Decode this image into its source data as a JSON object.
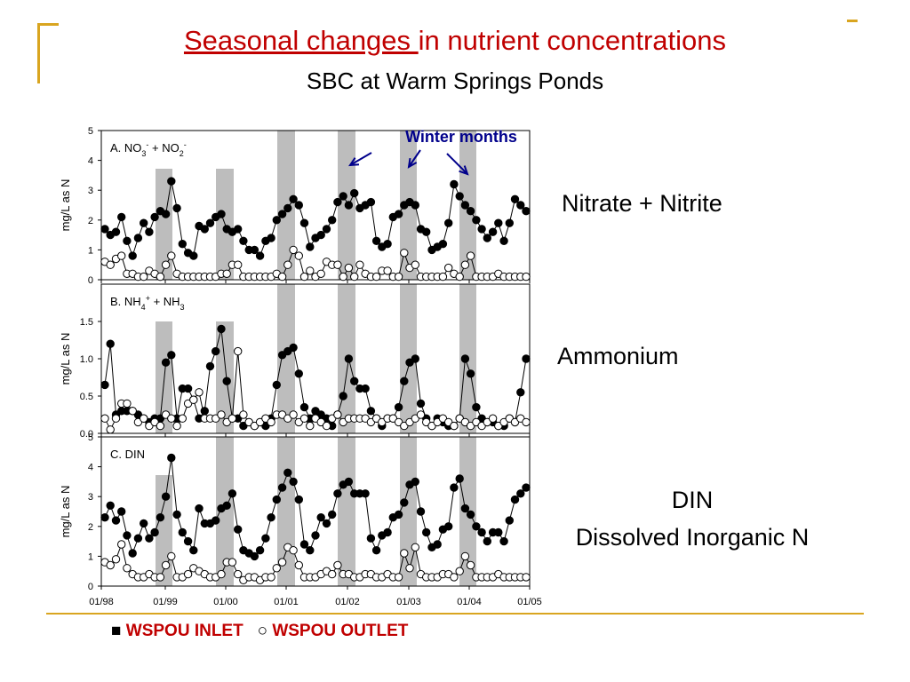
{
  "slide": {
    "title_underlined": "Seasonal changes ",
    "title_rest": "in nutrient concentrations",
    "subtitle": "SBC at Warm Springs Ponds",
    "annotation": "Winter months",
    "side_labels": {
      "nitrate": "Nitrate + Nitrite",
      "ammonium": "Ammonium",
      "din_line1": "DIN",
      "din_line2": "Dissolved Inorganic N"
    },
    "legend": {
      "inlet_symbol": "■",
      "inlet_label": "WSPOU INLET",
      "outlet_symbol": "○",
      "outlet_label": "WSPOU OUTLET"
    },
    "colors": {
      "title": "#c00000",
      "accent": "#d9a520",
      "annotation": "#00008b",
      "shade": "#bdbdbd"
    }
  },
  "chart_data": [
    {
      "type": "scatter",
      "panel_label": "A. NO3- + NO2-",
      "ylabel": "mg/L as N",
      "ylim": [
        0,
        5
      ],
      "yticks": [
        "0",
        "1",
        "2",
        "3",
        "4",
        "5"
      ],
      "xticks": [
        "01/98",
        "01/99",
        "01/00",
        "01/01",
        "01/02",
        "01/03",
        "01/04",
        "01/05"
      ],
      "series": [
        {
          "name": "WSPOU INLET",
          "marker": "filled",
          "values": [
            1.7,
            1.5,
            1.6,
            2.1,
            1.3,
            0.8,
            1.4,
            1.9,
            1.6,
            2.1,
            2.3,
            2.2,
            3.3,
            2.4,
            1.2,
            0.9,
            0.8,
            1.8,
            1.7,
            1.9,
            2.1,
            2.2,
            1.7,
            1.6,
            1.7,
            1.3,
            1.0,
            1.0,
            0.8,
            1.3,
            1.4,
            2.0,
            2.2,
            2.4,
            2.7,
            2.5,
            1.9,
            1.1,
            1.4,
            1.5,
            1.7,
            2.0,
            2.6,
            2.8,
            2.5,
            2.9,
            2.4,
            2.5,
            2.6,
            1.3,
            1.1,
            1.2,
            2.1,
            2.2,
            2.5,
            2.6,
            2.5,
            1.7,
            1.6,
            1.0,
            1.1,
            1.2,
            1.9,
            3.2,
            2.8,
            2.5,
            2.3,
            2.0,
            1.7,
            1.4,
            1.6,
            1.9,
            1.3,
            1.9,
            2.7,
            2.5,
            2.3
          ]
        },
        {
          "name": "WSPOU OUTLET",
          "marker": "open",
          "values": [
            0.6,
            0.5,
            0.7,
            0.8,
            0.2,
            0.2,
            0.1,
            0.1,
            0.3,
            0.2,
            0.1,
            0.5,
            0.8,
            0.2,
            0.1,
            0.1,
            0.1,
            0.1,
            0.1,
            0.1,
            0.1,
            0.2,
            0.2,
            0.5,
            0.5,
            0.1,
            0.1,
            0.1,
            0.1,
            0.1,
            0.1,
            0.2,
            0.1,
            0.5,
            1.0,
            0.8,
            0.1,
            0.3,
            0.1,
            0.2,
            0.6,
            0.5,
            0.5,
            0.1,
            0.4,
            0.1,
            0.5,
            0.2,
            0.1,
            0.1,
            0.3,
            0.3,
            0.1,
            0.1,
            0.9,
            0.4,
            0.5,
            0.1,
            0.1,
            0.1,
            0.1,
            0.1,
            0.4,
            0.2,
            0.1,
            0.5,
            0.8,
            0.1,
            0.1,
            0.1,
            0.1,
            0.2,
            0.1,
            0.1,
            0.1,
            0.1,
            0.1
          ]
        }
      ]
    },
    {
      "type": "scatter",
      "panel_label": "B. NH4+ + NH3",
      "ylabel": "mg/L as N",
      "ylim": [
        0,
        2
      ],
      "yticks": [
        "0.0",
        "0.5",
        "1.0",
        "1.5"
      ],
      "xticks": [
        "01/98",
        "01/99",
        "01/00",
        "01/01",
        "01/02",
        "01/03",
        "01/04",
        "01/05"
      ],
      "series": [
        {
          "name": "WSPOU INLET",
          "marker": "filled",
          "values": [
            0.65,
            1.2,
            0.25,
            0.3,
            0.3,
            0.3,
            0.25,
            0.2,
            0.15,
            0.2,
            0.2,
            0.95,
            1.05,
            0.2,
            0.6,
            0.6,
            0.45,
            0.2,
            0.3,
            0.9,
            1.1,
            1.4,
            0.7,
            0.2,
            0.2,
            0.1,
            0.15,
            0.1,
            0.15,
            0.1,
            0.2,
            0.65,
            1.05,
            1.1,
            1.15,
            0.8,
            0.35,
            0.2,
            0.3,
            0.25,
            0.2,
            0.1,
            0.25,
            0.5,
            1.0,
            0.7,
            0.6,
            0.6,
            0.3,
            0.2,
            0.1,
            0.2,
            0.2,
            0.35,
            0.7,
            0.95,
            1.0,
            0.4,
            0.2,
            0.1,
            0.2,
            0.15,
            0.1,
            0.1,
            0.2,
            1.0,
            0.8,
            0.35,
            0.2,
            0.15,
            0.15,
            0.1,
            0.1,
            0.2,
            0.15,
            0.55,
            1.0
          ]
        },
        {
          "name": "WSPOU OUTLET",
          "marker": "open",
          "values": [
            0.2,
            0.05,
            0.2,
            0.4,
            0.4,
            0.3,
            0.15,
            0.2,
            0.1,
            0.15,
            0.1,
            0.25,
            0.2,
            0.1,
            0.2,
            0.4,
            0.45,
            0.55,
            0.2,
            0.2,
            0.2,
            0.25,
            0.15,
            0.2,
            1.1,
            0.25,
            0.15,
            0.1,
            0.15,
            0.2,
            0.15,
            0.25,
            0.25,
            0.2,
            0.25,
            0.15,
            0.2,
            0.1,
            0.2,
            0.15,
            0.1,
            0.2,
            0.25,
            0.15,
            0.2,
            0.2,
            0.2,
            0.2,
            0.15,
            0.2,
            0.15,
            0.2,
            0.2,
            0.15,
            0.1,
            0.15,
            0.2,
            0.25,
            0.15,
            0.1,
            0.15,
            0.2,
            0.15,
            0.1,
            0.2,
            0.15,
            0.1,
            0.15,
            0.1,
            0.15,
            0.2,
            0.1,
            0.15,
            0.2,
            0.15,
            0.2,
            0.15
          ]
        }
      ]
    },
    {
      "type": "scatter",
      "panel_label": "C. DIN",
      "ylabel": "mg/L as N",
      "ylim": [
        0,
        5
      ],
      "yticks": [
        "0",
        "1",
        "2",
        "3",
        "4",
        "5"
      ],
      "xticks": [
        "01/98",
        "01/99",
        "01/00",
        "01/01",
        "01/02",
        "01/03",
        "01/04",
        "01/05"
      ],
      "series": [
        {
          "name": "WSPOU INLET",
          "marker": "filled",
          "values": [
            2.3,
            2.7,
            2.2,
            2.5,
            1.7,
            1.1,
            1.6,
            2.1,
            1.6,
            1.8,
            2.3,
            3.0,
            4.3,
            2.4,
            1.8,
            1.5,
            1.2,
            2.6,
            2.1,
            2.1,
            2.2,
            2.6,
            2.7,
            3.1,
            1.9,
            1.2,
            1.1,
            1.0,
            1.2,
            1.6,
            2.3,
            2.9,
            3.3,
            3.8,
            3.5,
            2.9,
            1.4,
            1.2,
            1.7,
            2.3,
            2.1,
            2.4,
            3.1,
            3.4,
            3.5,
            3.1,
            3.1,
            3.1,
            1.6,
            1.2,
            1.7,
            1.8,
            2.3,
            2.4,
            2.8,
            3.4,
            3.5,
            2.5,
            1.8,
            1.3,
            1.4,
            1.9,
            2.0,
            3.3,
            3.6,
            2.6,
            2.4,
            2.0,
            1.8,
            1.5,
            1.8,
            1.8,
            1.5,
            2.2,
            2.9,
            3.1,
            3.3
          ]
        },
        {
          "name": "WSPOU OUTLET",
          "marker": "open",
          "values": [
            0.8,
            0.7,
            0.9,
            1.4,
            0.6,
            0.4,
            0.3,
            0.3,
            0.4,
            0.3,
            0.3,
            0.7,
            1.0,
            0.3,
            0.3,
            0.4,
            0.6,
            0.5,
            0.4,
            0.3,
            0.3,
            0.4,
            0.8,
            0.8,
            0.4,
            0.2,
            0.3,
            0.3,
            0.2,
            0.3,
            0.3,
            0.6,
            0.8,
            1.3,
            1.2,
            0.7,
            0.3,
            0.3,
            0.3,
            0.4,
            0.5,
            0.4,
            0.7,
            0.4,
            0.4,
            0.3,
            0.3,
            0.4,
            0.4,
            0.3,
            0.3,
            0.4,
            0.3,
            0.3,
            1.1,
            0.6,
            1.3,
            0.4,
            0.3,
            0.3,
            0.3,
            0.4,
            0.4,
            0.3,
            0.5,
            1.0,
            0.7,
            0.3,
            0.3,
            0.3,
            0.3,
            0.4,
            0.3,
            0.3,
            0.3,
            0.3,
            0.3
          ]
        }
      ]
    }
  ]
}
